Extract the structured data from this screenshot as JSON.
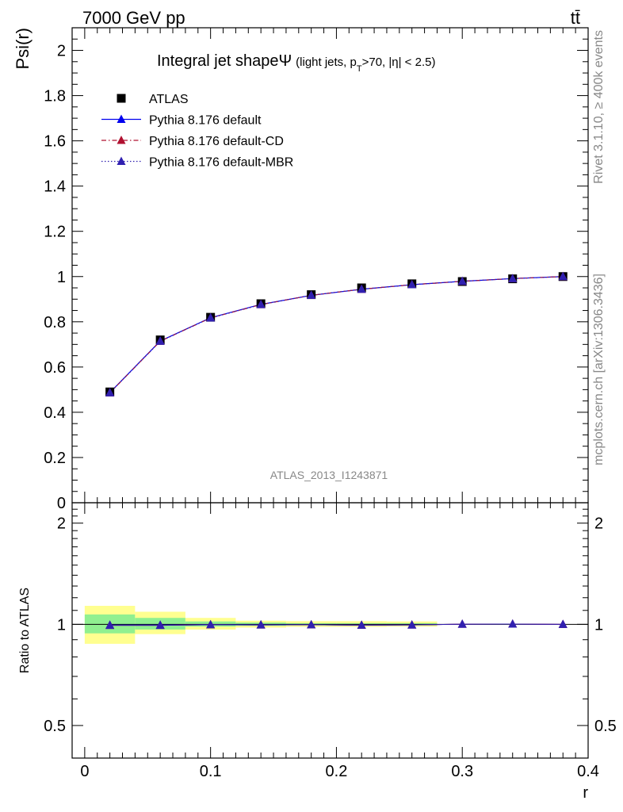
{
  "header": {
    "left": "7000 GeV pp",
    "right": "tt̄"
  },
  "side_labels": {
    "rivet": "Rivet 3.1.10, ≥ 400k events",
    "mcplots": "mcplots.cern.ch [arXiv:1306.3436]"
  },
  "chart_data": [
    {
      "type": "line",
      "title": "Integral jet shapeΨ",
      "title_note": "(light jets, p",
      "title_note_sub": "T",
      "title_note_rest": ">70, |η| < 2.5)",
      "ylabel": "Psi(r)",
      "xlabel": "",
      "xlim": [
        -0.01,
        0.4
      ],
      "ylim": [
        0,
        2.1
      ],
      "yticks": [
        0,
        0.2,
        0.4,
        0.6,
        0.8,
        1,
        1.2,
        1.4,
        1.6,
        1.8,
        2
      ],
      "ytick_labels": [
        "0",
        "0.2",
        "0.4",
        "0.6",
        "0.8",
        "1",
        "1.2",
        "1.4",
        "1.6",
        "1.8",
        "2"
      ],
      "watermark": "ATLAS_2013_I1243871",
      "legend_position": "top-left",
      "x": [
        0.02,
        0.06,
        0.1,
        0.14,
        0.18,
        0.22,
        0.26,
        0.3,
        0.34,
        0.38
      ],
      "series": [
        {
          "name": "ATLAS",
          "style": "data",
          "color": "#000000",
          "marker": "square",
          "values": [
            0.49,
            0.72,
            0.82,
            0.88,
            0.92,
            0.95,
            0.968,
            0.978,
            0.99,
            1.0
          ]
        },
        {
          "name": "Pythia 8.176 default",
          "style": "solid",
          "color": "#0000ee",
          "marker": "triangle",
          "values": [
            0.487,
            0.715,
            0.818,
            0.877,
            0.917,
            0.944,
            0.964,
            0.979,
            0.991,
            1.0
          ]
        },
        {
          "name": "Pythia 8.176 default-CD",
          "style": "dashdot",
          "color": "#b01030",
          "marker": "triangle",
          "values": [
            0.486,
            0.714,
            0.817,
            0.876,
            0.917,
            0.944,
            0.964,
            0.979,
            0.991,
            1.0
          ]
        },
        {
          "name": "Pythia 8.176 default-MBR",
          "style": "dotted",
          "color": "#3020b0",
          "marker": "triangle",
          "values": [
            0.486,
            0.714,
            0.817,
            0.876,
            0.917,
            0.944,
            0.964,
            0.979,
            0.991,
            1.0
          ]
        }
      ]
    },
    {
      "type": "line",
      "title": "",
      "ylabel": "Ratio to ATLAS",
      "xlabel": "r",
      "xlim": [
        -0.01,
        0.4
      ],
      "ylim": [
        0.4,
        2.3
      ],
      "yscale": "log",
      "yticks": [
        0.5,
        1,
        2
      ],
      "ytick_labels": [
        "0.5",
        "1",
        "2"
      ],
      "xticks": [
        0,
        0.1,
        0.2,
        0.3,
        0.4
      ],
      "xtick_labels": [
        "0",
        "0.1",
        "0.2",
        "0.3",
        "0.4"
      ],
      "bins": [
        [
          0.0,
          0.04
        ],
        [
          0.04,
          0.08
        ],
        [
          0.08,
          0.12
        ],
        [
          0.12,
          0.16
        ],
        [
          0.16,
          0.2
        ],
        [
          0.2,
          0.24
        ],
        [
          0.24,
          0.28
        ],
        [
          0.28,
          0.32
        ],
        [
          0.32,
          0.36
        ],
        [
          0.36,
          0.4
        ]
      ],
      "band_inner": [
        [
          0.94,
          1.07
        ],
        [
          0.965,
          1.045
        ],
        [
          0.985,
          1.02
        ],
        [
          0.99,
          1.012
        ],
        [
          0.993,
          1.008
        ],
        [
          0.993,
          1.008
        ],
        [
          0.993,
          1.008
        ],
        [
          1.0,
          1.0
        ],
        [
          1.0,
          1.0
        ],
        [
          1.0,
          1.0
        ]
      ],
      "band_outer": [
        [
          0.875,
          1.135
        ],
        [
          0.935,
          1.09
        ],
        [
          0.965,
          1.045
        ],
        [
          0.978,
          1.025
        ],
        [
          0.983,
          1.022
        ],
        [
          0.983,
          1.022
        ],
        [
          0.985,
          1.02
        ],
        [
          1.0,
          1.0
        ],
        [
          1.0,
          1.0
        ],
        [
          1.0,
          1.0
        ]
      ],
      "band_colors": {
        "inner": "#90f090",
        "outer": "#ffff90"
      },
      "x": [
        0.02,
        0.06,
        0.1,
        0.14,
        0.18,
        0.22,
        0.26,
        0.3,
        0.34,
        0.38
      ],
      "series": [
        {
          "name": "Pythia 8.176 default",
          "color": "#0000ee",
          "values": [
            0.995,
            0.995,
            0.998,
            0.997,
            0.997,
            0.994,
            0.996,
            1.001,
            1.002,
            1.0
          ]
        },
        {
          "name": "Pythia 8.176 default-CD",
          "color": "#b01030",
          "values": [
            0.993,
            0.993,
            0.997,
            0.996,
            0.997,
            0.994,
            0.996,
            1.001,
            1.002,
            1.0
          ]
        },
        {
          "name": "Pythia 8.176 default-MBR",
          "color": "#3020b0",
          "values": [
            0.993,
            0.993,
            0.997,
            0.996,
            0.997,
            0.994,
            0.996,
            1.001,
            1.002,
            1.0
          ]
        }
      ]
    }
  ]
}
